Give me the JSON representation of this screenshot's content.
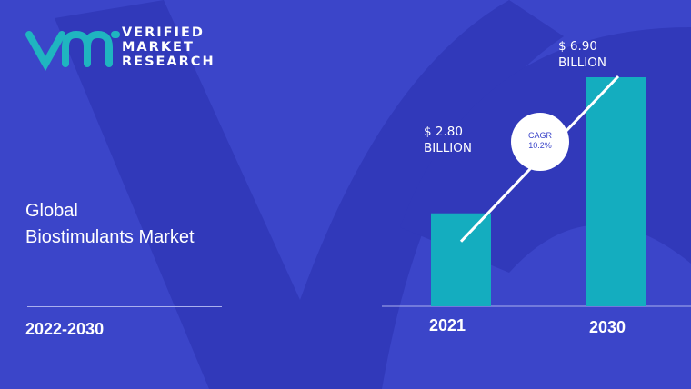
{
  "brand": {
    "logo_mark": "vmr",
    "lines": [
      "VERIFIED",
      "MARKET",
      "RESEARCH"
    ]
  },
  "title_lines": [
    "Global",
    "Biostimulants Market"
  ],
  "period": "2022-2030",
  "colors": {
    "background": "#3b45c9",
    "shape": "#3139ba",
    "bar": "#14adbf",
    "logo": "#1fb5c0",
    "line": "#ffffff"
  },
  "chart_data": {
    "type": "bar",
    "categories": [
      "2021",
      "2030"
    ],
    "values": [
      2.8,
      6.9
    ],
    "value_labels": [
      [
        "$ 2.80",
        "BILLION"
      ],
      [
        "$ 6.90",
        "BILLION"
      ]
    ],
    "unit": "USD billion",
    "annotation": {
      "label": "CAGR",
      "value": "10.2%"
    },
    "ylim": [
      0,
      8
    ],
    "grid": false
  }
}
